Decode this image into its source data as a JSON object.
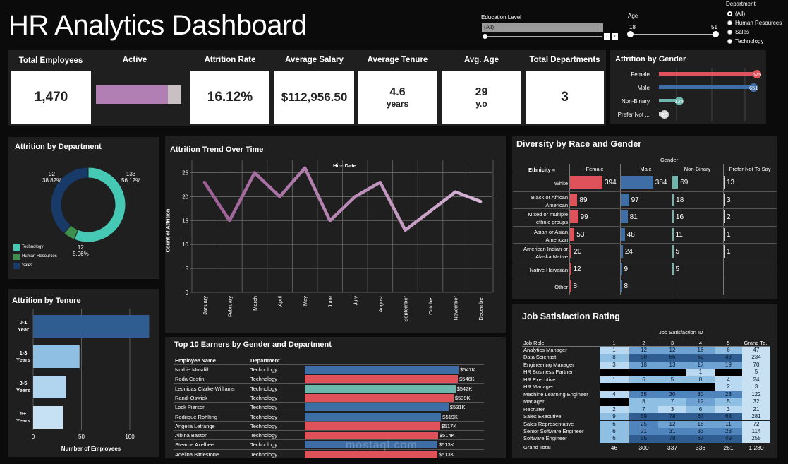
{
  "header": {
    "title": "HR Analytics Dashboard",
    "education_label": "Education Level",
    "education_value": "(All)",
    "age_label": "Age",
    "age_min": "18",
    "age_max": "51",
    "department_label": "Department",
    "department_options": [
      "(All)",
      "Human Resources",
      "Sales",
      "Technology"
    ]
  },
  "kpis": {
    "total_employees_label": "Total Employees",
    "total_employees": "1,470",
    "active_label": "Active",
    "active_fraction": 0.84,
    "attrition_rate_label": "Attrition Rate",
    "attrition_rate": "16.12%",
    "avg_salary_label": "Average Salary",
    "avg_salary": "$112,956.50",
    "avg_tenure_label": "Average Tenure",
    "avg_tenure": "4.6",
    "avg_tenure_unit": "years",
    "avg_age_label": "Avg. Age",
    "avg_age": "29",
    "avg_age_unit": "y.o",
    "total_departments_label": "Total Departments",
    "total_departments": "3"
  },
  "attrition_by_gender": {
    "title": "Attrition by Gender",
    "rows": [
      {
        "label": "Female",
        "value": 675,
        "color": "#e0525a"
      },
      {
        "label": "Male",
        "value": 651,
        "color": "#3f6ea6"
      },
      {
        "label": "Non-Binary",
        "value": 124,
        "color": "#6fb7ad"
      },
      {
        "label": "Prefer Not ...",
        "value": 20,
        "color": "#d8d8d8"
      }
    ]
  },
  "attrition_by_department": {
    "title": "Attrition by Department",
    "slices": [
      {
        "name": "Technology",
        "count": "133",
        "pct": "56.12%",
        "value": 133,
        "color": "#45c8b4"
      },
      {
        "name": "Human Resources",
        "count": "12",
        "pct": "5.06%",
        "value": 12,
        "color": "#3c8f4c"
      },
      {
        "name": "Sales",
        "count": "92",
        "pct": "38.82%",
        "value": 92,
        "color": "#183a68"
      }
    ]
  },
  "attrition_trend": {
    "title": "Attrition Trend Over Time",
    "xlabel": "Hire Date",
    "ylabel": "Count of Attrition",
    "yticks": [
      "0",
      "5",
      "10",
      "15",
      "20",
      "25"
    ]
  },
  "chart_data": {
    "type": "line",
    "title": "Attrition Trend Over Time",
    "xlabel": "Hire Date",
    "ylabel": "Count of Attrition",
    "ylim": [
      0,
      27
    ],
    "categories": [
      "January",
      "February",
      "March",
      "April",
      "May",
      "June",
      "July",
      "August",
      "September",
      "October",
      "November",
      "December"
    ],
    "values": [
      23,
      15,
      25,
      20,
      26,
      15,
      20,
      23,
      13,
      17,
      21,
      19
    ]
  },
  "attrition_by_tenure": {
    "title": "Attrition by Tenure",
    "xlabel": "Number of Employees",
    "ticks": [
      "0",
      "50",
      "100"
    ],
    "rows": [
      {
        "l1": "0-1",
        "l2": "Year",
        "value": 120,
        "color": "#2f5d91"
      },
      {
        "l1": "1-3",
        "l2": "Years",
        "value": 48,
        "color": "#8fbfe3"
      },
      {
        "l1": "3-5",
        "l2": "Years",
        "value": 34,
        "color": "#b2d5ef"
      },
      {
        "l1": "5+",
        "l2": "Years",
        "value": 31,
        "color": "#c6e1f4"
      }
    ]
  },
  "top_earners": {
    "title": "Top 10 Earners by Gender and Department",
    "col_name": "Employee Name",
    "col_dept": "Department",
    "rows": [
      {
        "name": "Norbie Mosdill",
        "dept": "Technology",
        "label": "$547K",
        "value": 547,
        "color": "#3f6ea6"
      },
      {
        "name": "Roda Costin",
        "dept": "Technology",
        "label": "$546K",
        "value": 546,
        "color": "#e0525a"
      },
      {
        "name": "Leonidas Clarke-Williams",
        "dept": "Technology",
        "label": "$542K",
        "value": 542,
        "color": "#6fb7ad"
      },
      {
        "name": "Randi Oswick",
        "dept": "Technology",
        "label": "$539K",
        "value": 539,
        "color": "#e0525a"
      },
      {
        "name": "Lock Pierson",
        "dept": "Technology",
        "label": "$531K",
        "value": 531,
        "color": "#3f6ea6"
      },
      {
        "name": "Rodrique Rohlfing",
        "dept": "Technology",
        "label": "$519K",
        "value": 519,
        "color": "#3f6ea6"
      },
      {
        "name": "Angelia Letrange",
        "dept": "Technology",
        "label": "$517K",
        "value": 517,
        "color": "#e0525a"
      },
      {
        "name": "Albina Baston",
        "dept": "Technology",
        "label": "$514K",
        "value": 514,
        "color": "#e0525a"
      },
      {
        "name": "Stearne Axelbee",
        "dept": "Technology",
        "label": "$513K",
        "value": 513,
        "color": "#3f6ea6"
      },
      {
        "name": "Adelina Bittlestone",
        "dept": "Technology",
        "label": "$513K",
        "value": 513,
        "color": "#e0525a"
      }
    ]
  },
  "diversity": {
    "title": "Diversity by Race and Gender",
    "gender_label": "Gender",
    "ethnicity_label": "Ethnicity",
    "columns": [
      "Female",
      "Male",
      "Non-Binary",
      "Prefer Not To Say"
    ],
    "rows": [
      {
        "l1": "White",
        "l2": "",
        "vals": [
          "394",
          "384",
          "69",
          "13"
        ]
      },
      {
        "l1": "Black or African",
        "l2": "American",
        "vals": [
          "89",
          "97",
          "18",
          "3"
        ]
      },
      {
        "l1": "Mixed or multiple",
        "l2": "ethnic groups",
        "vals": [
          "99",
          "81",
          "16",
          "2"
        ]
      },
      {
        "l1": "Asian or Asian",
        "l2": "American",
        "vals": [
          "53",
          "48",
          "11",
          "1"
        ]
      },
      {
        "l1": "American Indian or",
        "l2": "Alaska Native",
        "vals": [
          "20",
          "24",
          "5",
          "1"
        ]
      },
      {
        "l1": "Native Hawaiian",
        "l2": "",
        "vals": [
          "12",
          "9",
          "5",
          ""
        ]
      },
      {
        "l1": "Other",
        "l2": "",
        "vals": [
          "8",
          "8",
          "",
          ""
        ]
      }
    ]
  },
  "job_satisfaction": {
    "title": "Job Satisfaction Rating",
    "header": "Job Satisfaction ID",
    "role_label": "Job Role",
    "columns": [
      "1",
      "2",
      "3",
      "4",
      "5",
      "Grand To.."
    ],
    "rows": [
      {
        "role": "Analytics Manager",
        "vals": [
          "1",
          "12",
          "12",
          "16",
          "6",
          "47"
        ]
      },
      {
        "role": "Data Scientist",
        "vals": [
          "8",
          "50",
          "66",
          "62",
          "48",
          "234"
        ]
      },
      {
        "role": "Engineering Manager",
        "vals": [
          "3",
          "18",
          "13",
          "17",
          "19",
          "70"
        ]
      },
      {
        "role": "HR Business Partner",
        "vals": [
          "",
          "",
          "",
          "1",
          "",
          "5"
        ]
      },
      {
        "role": "HR Executive",
        "vals": [
          "1",
          "6",
          "5",
          "8",
          "4",
          "24"
        ]
      },
      {
        "role": "HR Manager",
        "vals": [
          "",
          "",
          "",
          "",
          "2",
          "3"
        ]
      },
      {
        "role": "Machine Learning Engineer",
        "vals": [
          "4",
          "35",
          "30",
          "30",
          "23",
          "122"
        ]
      },
      {
        "role": "Manager",
        "vals": [
          "",
          "8",
          "7",
          "12",
          "5",
          "32"
        ]
      },
      {
        "role": "Recruiter",
        "vals": [
          "2",
          "7",
          "3",
          "6",
          "3",
          "21"
        ]
      },
      {
        "role": "Sales Executive",
        "vals": [
          "9",
          "59",
          "78",
          "67",
          "68",
          "281"
        ]
      },
      {
        "role": "Sales Representative",
        "vals": [
          "6",
          "25",
          "12",
          "18",
          "11",
          "72"
        ]
      },
      {
        "role": "Senior Software Engineer",
        "vals": [
          "6",
          "21",
          "31",
          "33",
          "23",
          "114"
        ]
      },
      {
        "role": "Software Engineer",
        "vals": [
          "6",
          "55",
          "78",
          "67",
          "49",
          "255"
        ]
      }
    ],
    "total_label": "Grand Total",
    "totals": [
      "46",
      "300",
      "337",
      "336",
      "261",
      "1,280"
    ]
  },
  "watermark": "mostaql.com"
}
